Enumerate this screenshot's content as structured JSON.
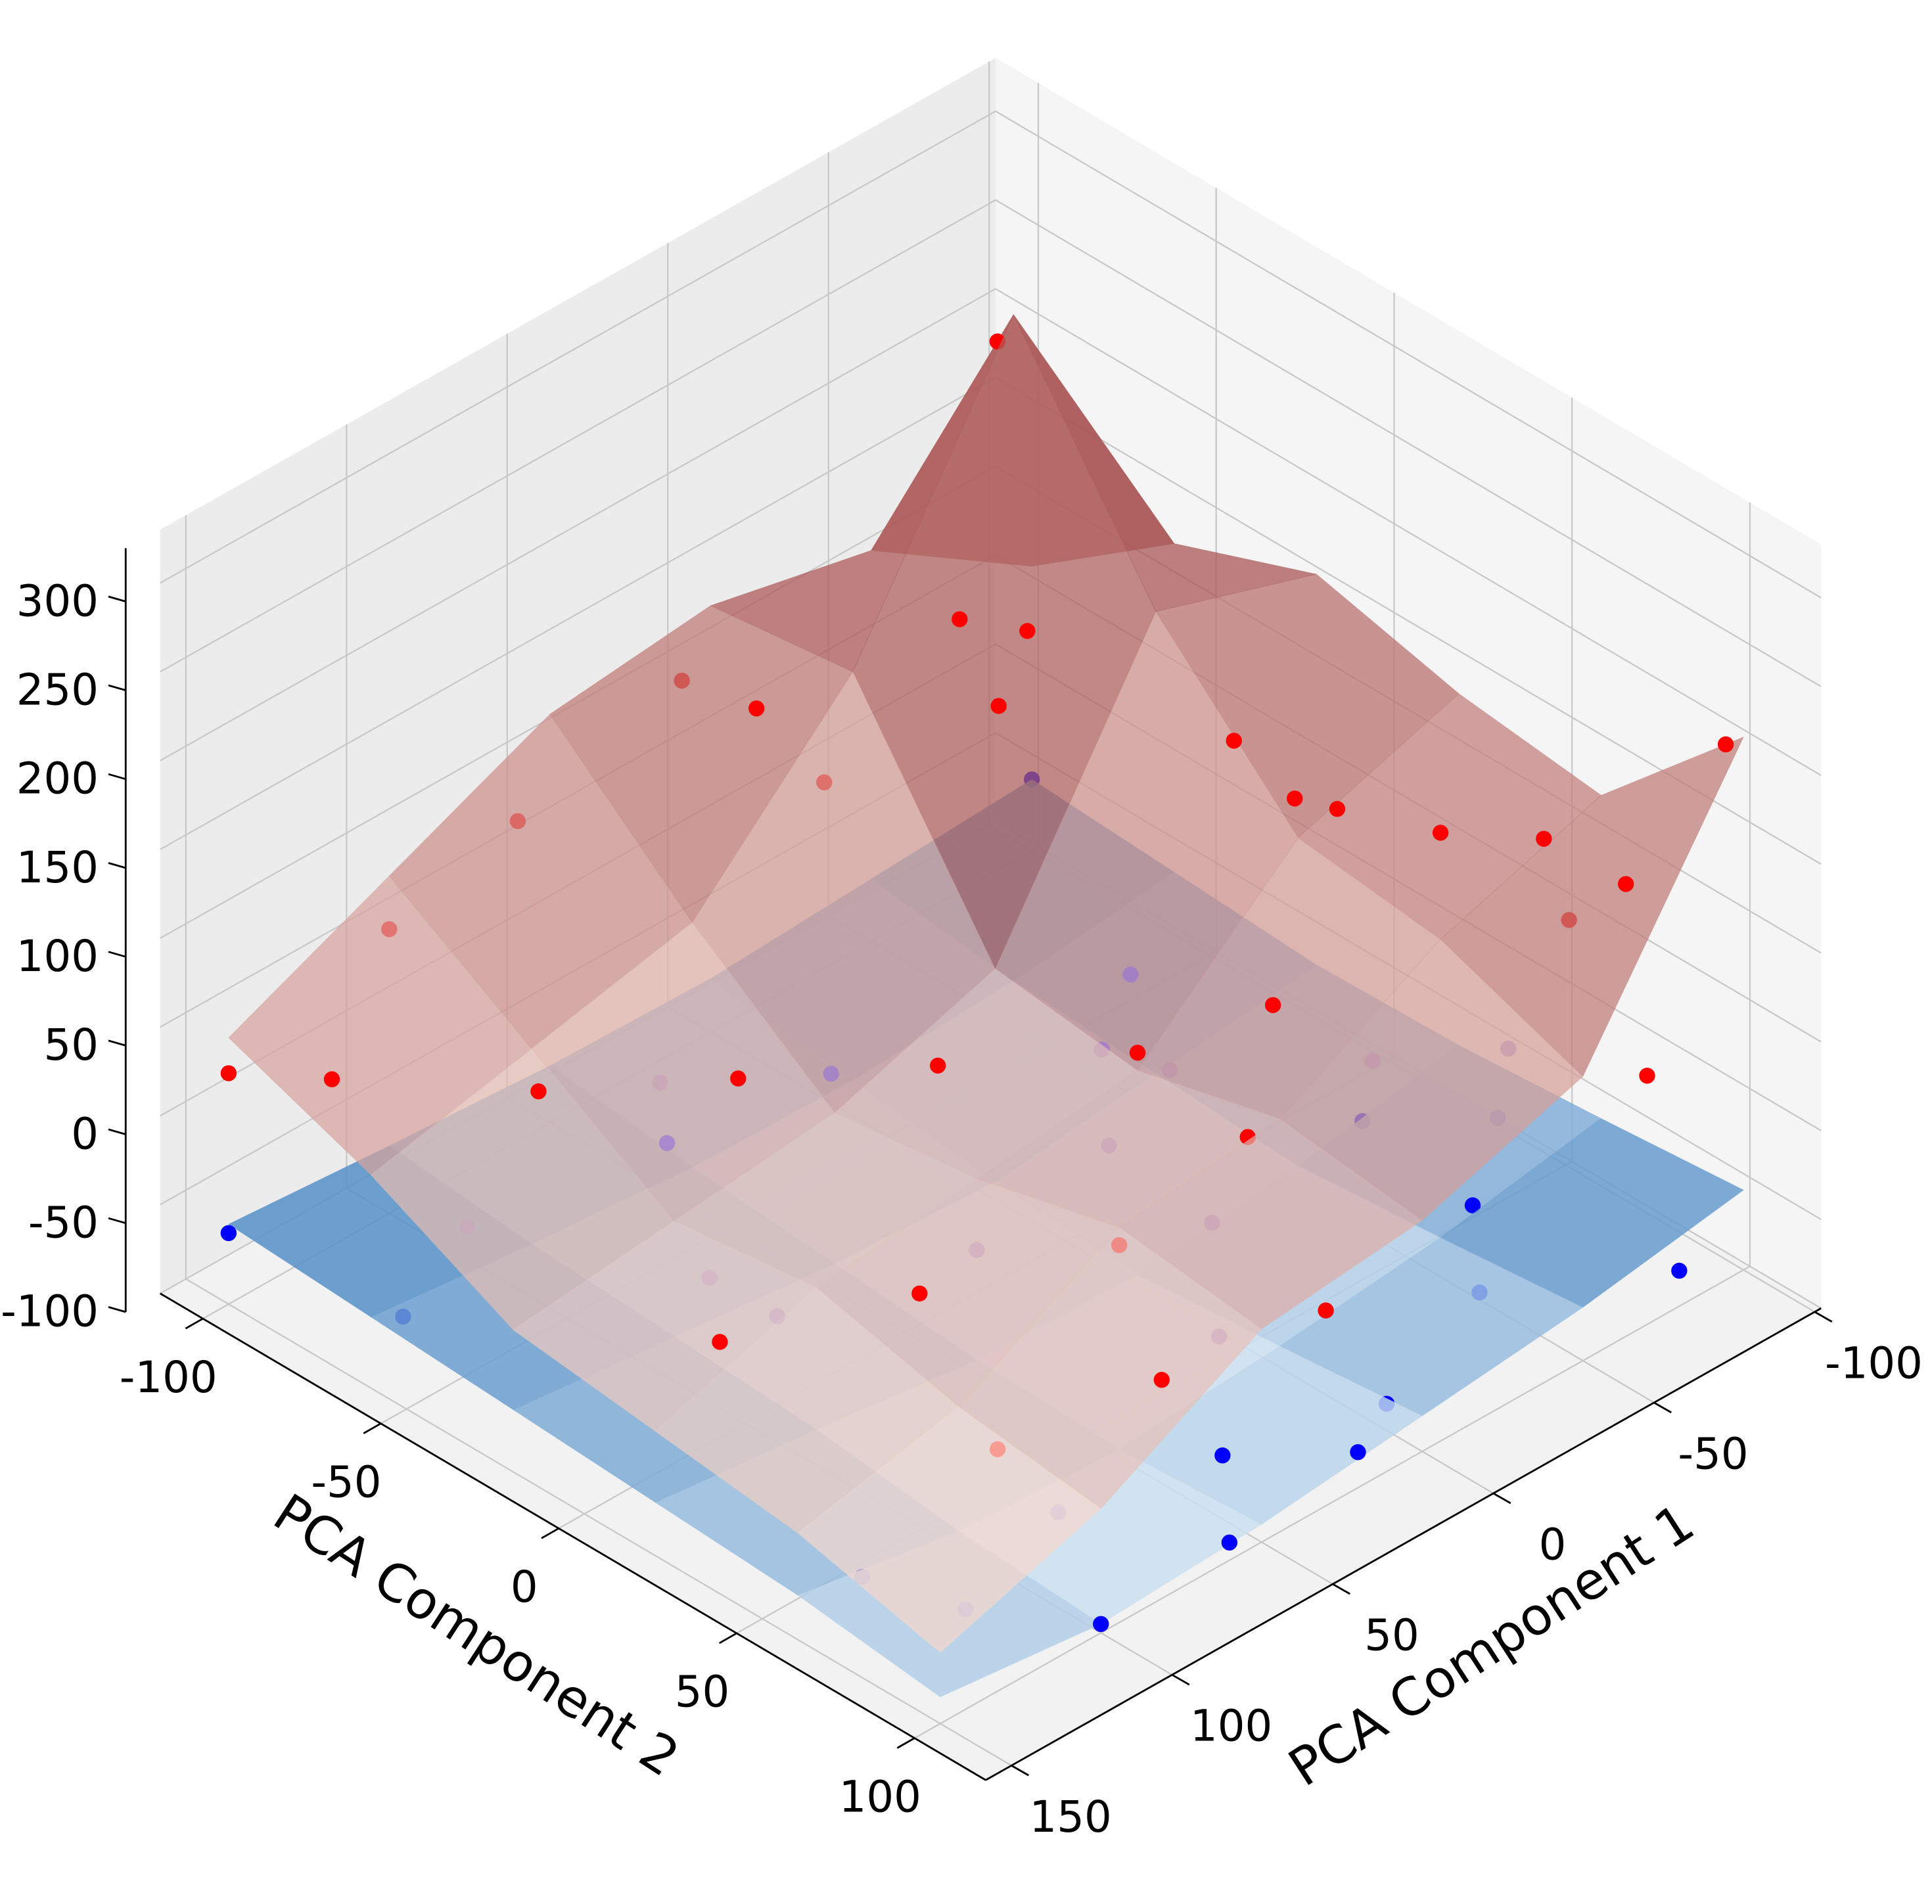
{
  "chart_data": {
    "type": "surface3d",
    "xlabel": "PCA Component 1",
    "ylabel": "PCA Component 2",
    "xlim": [
      -102,
      158
    ],
    "ylim": [
      -112,
      120
    ],
    "zlim": [
      -100,
      330
    ],
    "xticks": [
      -100,
      -50,
      0,
      50,
      100,
      150
    ],
    "yticks": [
      -100,
      -50,
      0,
      50,
      100
    ],
    "zticks": [
      -100,
      -50,
      0,
      50,
      100,
      150,
      200,
      250,
      300
    ],
    "grid": true,
    "surface_x": [
      -100,
      -50,
      0,
      50,
      100,
      150
    ],
    "surface_y": [
      -100,
      -60,
      -20,
      20,
      60,
      100
    ],
    "surfaces": [
      {
        "colormap": [
          "#d4e6f4",
          "#3d7fbf"
        ],
        "opacity": 0.85,
        "z": [
          [
            -60,
            -65,
            -70,
            -68,
            -62,
            -55
          ],
          [
            -65,
            -75,
            -80,
            -78,
            -70,
            -60
          ],
          [
            -70,
            -80,
            -90,
            -85,
            -75,
            -65
          ],
          [
            -68,
            -85,
            -95,
            -92,
            -80,
            -70
          ],
          [
            -62,
            -78,
            -88,
            -95,
            -90,
            -75
          ],
          [
            -55,
            -70,
            -80,
            -90,
            -95,
            -85
          ]
        ]
      },
      {
        "colormap": [
          "#fde4d8",
          "#7f0d12"
        ],
        "opacity": 0.72,
        "z": [
          [
            60,
            120,
            140,
            130,
            90,
            50
          ],
          [
            120,
            300,
            150,
            60,
            40,
            20
          ],
          [
            150,
            180,
            30,
            0,
            -10,
            -20
          ],
          [
            130,
            100,
            20,
            10,
            0,
            -30
          ],
          [
            120,
            90,
            40,
            30,
            -20,
            -40
          ],
          [
            200,
            60,
            30,
            20,
            -30,
            -60
          ]
        ]
      }
    ],
    "series": [
      {
        "color": "#ff0000",
        "opacity": 1,
        "x": [
          -45,
          -10,
          0,
          10,
          30,
          -30,
          -40,
          -50,
          -60,
          -80,
          -100,
          20,
          60,
          100,
          140,
          150,
          120,
          80,
          40,
          0,
          -20,
          10,
          50,
          90,
          130,
          110,
          70,
          30,
          -70,
          -90,
          -60,
          20
        ],
        "y": [
          -60,
          -20,
          -30,
          -10,
          -60,
          20,
          40,
          60,
          80,
          85,
          95,
          -90,
          -100,
          -100,
          -80,
          -100,
          -40,
          -20,
          0,
          20,
          40,
          60,
          60,
          40,
          20,
          80,
          90,
          100,
          100,
          60,
          10,
          -50
        ],
        "z": [
          290,
          210,
          215,
          200,
          160,
          175,
          150,
          150,
          160,
          120,
          190,
          130,
          80,
          60,
          40,
          30,
          60,
          50,
          40,
          30,
          60,
          40,
          20,
          10,
          0,
          -10,
          0,
          10,
          40,
          60,
          100,
          120
        ]
      },
      {
        "color": "#9370db",
        "opacity": 0.6,
        "x": [
          -20,
          0,
          20,
          40,
          -40,
          -60,
          60,
          80,
          100,
          120,
          30,
          10,
          -10,
          50,
          90
        ],
        "y": [
          0,
          10,
          30,
          -30,
          50,
          70,
          -60,
          -40,
          -10,
          -60,
          70,
          50,
          20,
          20,
          0
        ],
        "z": [
          30,
          20,
          10,
          0,
          20,
          30,
          -20,
          -10,
          -30,
          -40,
          -40,
          -20,
          10,
          -30,
          -50
        ]
      },
      {
        "color": "#0000ff",
        "opacity": 1,
        "x": [
          -100,
          -80,
          -60,
          -90,
          -70,
          150,
          130,
          120,
          100,
          140,
          60,
          40,
          80,
          20,
          0,
          -40
        ],
        "y": [
          -100,
          100,
          60,
          40,
          20,
          -100,
          60,
          80,
          100,
          -60,
          100,
          80,
          70,
          100,
          90,
          80
        ],
        "z": [
          -60,
          -80,
          -70,
          -75,
          -80,
          -60,
          -85,
          -90,
          -95,
          -70,
          -90,
          -85,
          -88,
          -80,
          -85,
          -75
        ]
      }
    ]
  }
}
